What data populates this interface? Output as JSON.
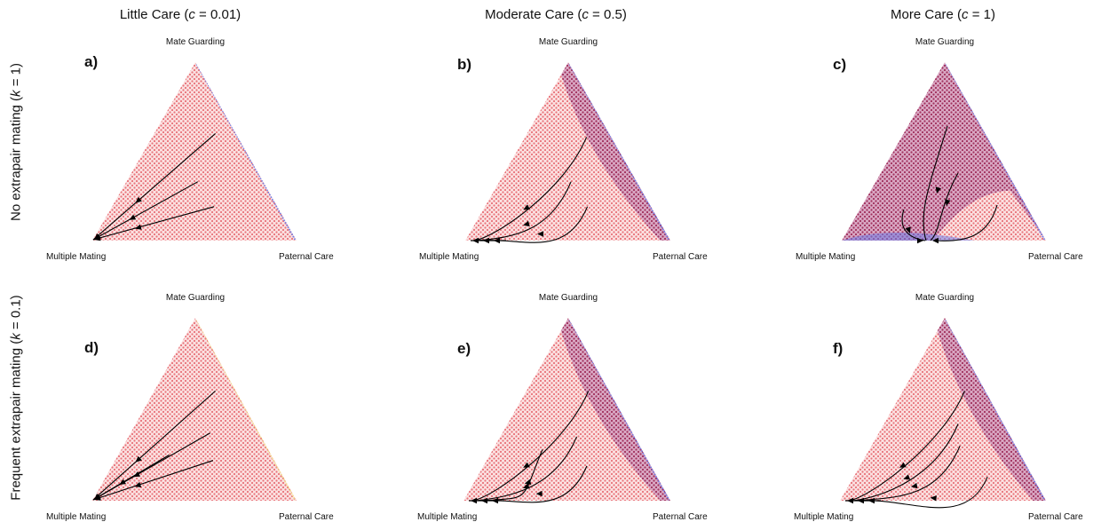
{
  "column_titles": [
    {
      "prefix": "Little Care (",
      "var": "c",
      "suffix": " = 0.01)"
    },
    {
      "prefix": "Moderate Care (",
      "var": "c",
      "suffix": " = 0.5)"
    },
    {
      "prefix": "More Care (",
      "var": "c",
      "suffix": " = 1)"
    }
  ],
  "row_titles": [
    {
      "prefix": "No extrapair mating (",
      "var": "k",
      "suffix": " = 1)"
    },
    {
      "prefix": "Frequent extrapair mating (",
      "var": "k",
      "suffix": " = 0.1)"
    }
  ],
  "vertex_labels": {
    "top": "Mate Guarding",
    "left": "Multiple Mating",
    "right": "Paternal Care"
  },
  "colors": {
    "red_region": "#e8737a",
    "red_fill": "#fbe1e1",
    "purple_region": "#a0305c",
    "purple_fill": "#d9a7c3",
    "blue_region": "#6f7de8",
    "yellow_region": "#f2e08a",
    "trajectory": "#000000"
  },
  "panels": [
    {
      "letter": "a)",
      "regions": [
        "red",
        "blue-edge"
      ],
      "trajectories": [
        "a1",
        "a2",
        "a3"
      ]
    },
    {
      "letter": "b)",
      "regions": [
        "red",
        "purple-top-right",
        "blue-edge"
      ],
      "trajectories": [
        "b1",
        "b2",
        "b3"
      ]
    },
    {
      "letter": "c)",
      "regions": [
        "purple-most",
        "red-bottom-right",
        "blue-bottom-left"
      ],
      "trajectories": [
        "c1",
        "c2",
        "c3",
        "c4"
      ]
    },
    {
      "letter": "d)",
      "regions": [
        "red",
        "yellow-edge"
      ],
      "trajectories": [
        "d1",
        "d2",
        "d3",
        "d4"
      ]
    },
    {
      "letter": "e)",
      "regions": [
        "red",
        "purple-top-right",
        "blue-edge"
      ],
      "trajectories": [
        "e1",
        "e2",
        "e3",
        "e4"
      ]
    },
    {
      "letter": "f)",
      "regions": [
        "red",
        "purple-top-right",
        "blue-edge"
      ],
      "trajectories": [
        "f1",
        "f2",
        "f3",
        "f4"
      ]
    }
  ]
}
